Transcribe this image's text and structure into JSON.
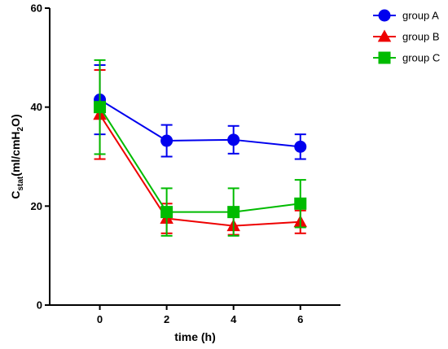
{
  "chart_data": {
    "type": "line",
    "title": "",
    "xlabel": "time (h)",
    "ylabel_main": "C",
    "ylabel_sub": "stat",
    "ylabel_rest": "(ml/cmH",
    "ylabel_sub2": "2",
    "ylabel_end": "O)",
    "xlim": [
      -1.5,
      7.2
    ],
    "ylim": [
      0,
      60
    ],
    "x_ticks": [
      0,
      2,
      4,
      6
    ],
    "y_ticks": [
      0,
      20,
      40,
      60
    ],
    "x_tick_labels": [
      "0",
      "2",
      "4",
      "6"
    ],
    "y_tick_labels": [
      "0",
      "20",
      "40",
      "60"
    ],
    "legend_position": "top-right",
    "grid": false,
    "series": [
      {
        "name": "group A",
        "color": "#0000ee",
        "marker": "circle",
        "x": [
          0,
          2,
          4,
          6
        ],
        "y": [
          41.5,
          33.2,
          33.4,
          32.0
        ],
        "err": [
          7.0,
          3.2,
          2.8,
          2.5
        ]
      },
      {
        "name": "group B",
        "color": "#ee0000",
        "marker": "triangle",
        "x": [
          0,
          2,
          4,
          6
        ],
        "y": [
          38.5,
          17.5,
          16.0,
          16.8
        ],
        "err": [
          9.0,
          3.0,
          1.8,
          2.3
        ]
      },
      {
        "name": "group C",
        "color": "#00bb00",
        "marker": "square",
        "x": [
          0,
          2,
          4,
          6
        ],
        "y": [
          40.0,
          18.8,
          18.8,
          20.5
        ],
        "err": [
          9.5,
          4.8,
          4.8,
          4.8
        ]
      }
    ]
  }
}
